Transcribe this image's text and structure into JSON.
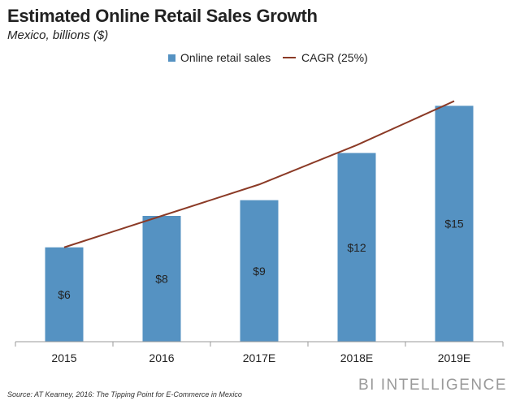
{
  "header": {
    "title": "Estimated Online Retail Sales Growth",
    "subtitle": "Mexico, billions ($)"
  },
  "legend": {
    "bar_label": "Online retail sales",
    "line_label": "CAGR (25%)"
  },
  "footer": {
    "source": "Source: AT Kearney, 2016: The Tipping Point for E-Commerce in Mexico",
    "brand": "BI INTELLIGENCE"
  },
  "colors": {
    "bar": "#5592c2",
    "line": "#8b3a26",
    "axis": "#9a9a9a"
  },
  "chart_data": {
    "type": "bar",
    "categories": [
      "2015",
      "2016",
      "2017E",
      "2018E",
      "2019E"
    ],
    "series": [
      {
        "name": "Online retail sales",
        "type": "bar",
        "values": [
          6,
          8,
          9,
          12,
          15
        ],
        "labels": [
          "$6",
          "$8",
          "$9",
          "$12",
          "$15"
        ]
      },
      {
        "name": "CAGR (25%)",
        "type": "line",
        "values": [
          6,
          8,
          10,
          12.5,
          15.3
        ]
      }
    ],
    "title": "Estimated Online Retail Sales Growth",
    "subtitle": "Mexico, billions ($)",
    "xlabel": "",
    "ylabel": "",
    "ylim": [
      0,
      16
    ],
    "grid": false,
    "legend_position": "top-center"
  }
}
